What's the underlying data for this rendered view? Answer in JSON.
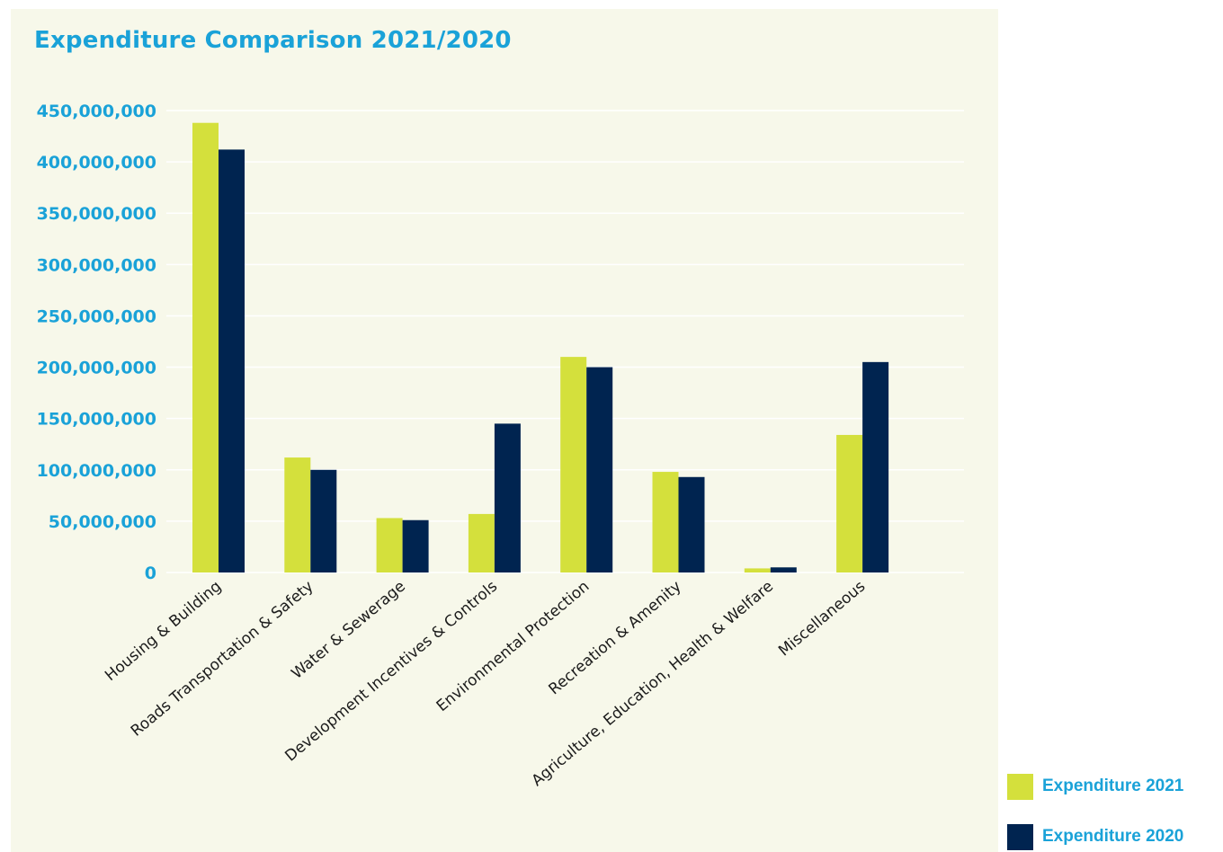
{
  "chart_data": {
    "type": "bar",
    "title": "Expenditure Comparison 2021/2020",
    "xlabel": "",
    "ylabel": "",
    "ylim": [
      0,
      450000000
    ],
    "ytick_values": [
      0,
      50000000,
      100000000,
      150000000,
      200000000,
      250000000,
      300000000,
      350000000,
      400000000,
      450000000
    ],
    "ytick_labels": [
      "0",
      "50,000,000",
      "100,000,000",
      "150,000,000",
      "200,000,000",
      "250,000,000",
      "300,000,000",
      "350,000,000",
      "400,000,000",
      "450,000,000"
    ],
    "grid": true,
    "legend_position": "bottom-right",
    "categories": [
      "Housing & Building",
      "Roads Transportation & Safety",
      "Water & Sewerage",
      "Development Incentives & Controls",
      "Environmental Protection",
      "Recreation & Amenity",
      "Agriculture, Education, Health & Welfare",
      "Miscellaneous"
    ],
    "series": [
      {
        "name": "Expenditure 2021",
        "color": "#d4e03c",
        "values": [
          438000000,
          112000000,
          53000000,
          57000000,
          210000000,
          98000000,
          4000000,
          134000000
        ]
      },
      {
        "name": "Expenditure 2020",
        "color": "#002450",
        "values": [
          412000000,
          100000000,
          51000000,
          145000000,
          200000000,
          93000000,
          5000000,
          205000000
        ]
      }
    ]
  }
}
